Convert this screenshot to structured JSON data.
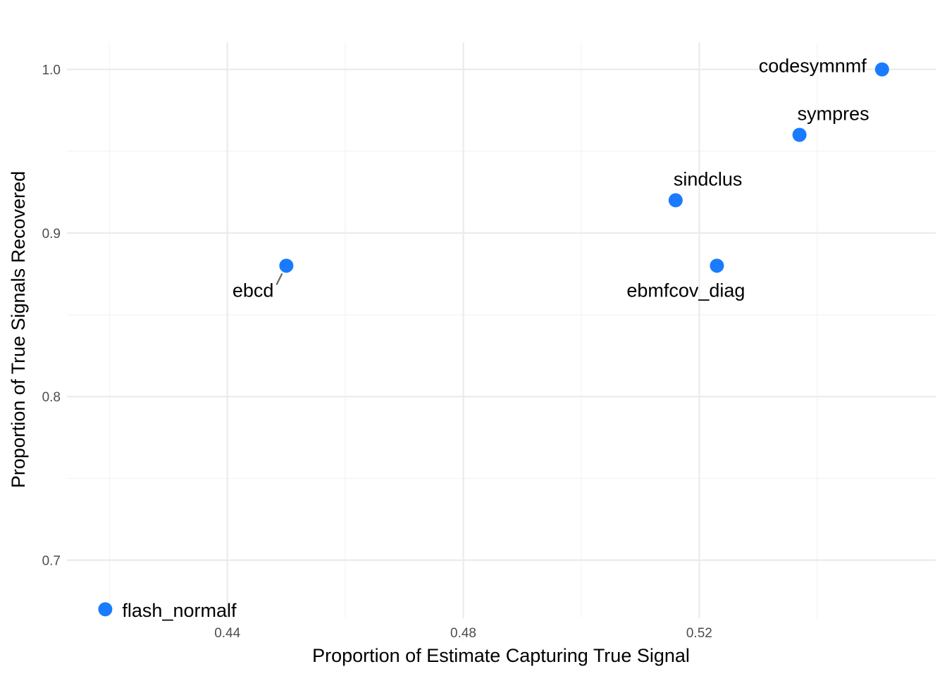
{
  "chart_data": {
    "type": "scatter",
    "title": "",
    "xlabel": "Proportion of Estimate Capturing True Signal",
    "ylabel": "Proportion of True Signals Recovered",
    "xlim": [
      0.4128,
      0.5601
    ],
    "ylim": [
      0.6645,
      1.0166
    ],
    "x_ticks": [
      0.44,
      0.48,
      0.52
    ],
    "x_tick_labels": [
      "0.44",
      "0.48",
      "0.52"
    ],
    "x_minor_ticks": [
      0.42,
      0.46,
      0.5,
      0.54
    ],
    "y_ticks": [
      0.7,
      0.8,
      0.9,
      1.0
    ],
    "y_tick_labels": [
      "0.7",
      "0.8",
      "0.9",
      "1.0"
    ],
    "y_minor_ticks": [
      0.75,
      0.85,
      0.95
    ],
    "grid": true,
    "legend": "none",
    "point_color": "#1a7bff",
    "points": [
      {
        "label": "flash_normalf",
        "x": 0.4193,
        "y": 0.67,
        "label_pos": "right"
      },
      {
        "label": "ebcd",
        "x": 0.45,
        "y": 0.88,
        "label_pos": "below-left"
      },
      {
        "label": "sindclus",
        "x": 0.516,
        "y": 0.92,
        "label_pos": "above-right"
      },
      {
        "label": "ebmfcov_diag",
        "x": 0.523,
        "y": 0.88,
        "label_pos": "below-left"
      },
      {
        "label": "sympres",
        "x": 0.537,
        "y": 0.96,
        "label_pos": "above-right"
      },
      {
        "label": "codesymnmf",
        "x": 0.551,
        "y": 1.0,
        "label_pos": "left"
      }
    ]
  }
}
